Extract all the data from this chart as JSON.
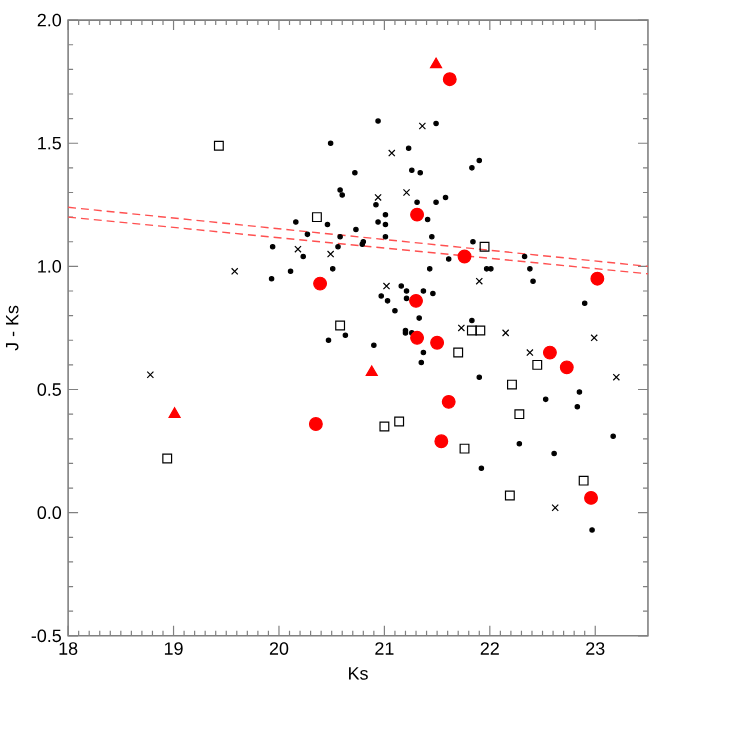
{
  "chart_data": {
    "type": "scatter",
    "xlabel": "Ks",
    "ylabel": "J - Ks",
    "xlim": [
      18,
      23.5
    ],
    "ylim": [
      -0.5,
      2.0
    ],
    "xticks": [
      18,
      19,
      20,
      21,
      22,
      23
    ],
    "yticks": [
      -0.5,
      {
        "value": 0,
        "label": "0.0"
      },
      0.5,
      {
        "value": 1,
        "label": "1.0"
      },
      1.5,
      {
        "value": 2,
        "label": "2.0"
      }
    ],
    "grid": false,
    "series": [
      {
        "marker": "circle",
        "color": "#000000",
        "x": [
          20.49,
          20.72,
          20.58,
          20.6,
          20.46,
          20.16,
          20.27,
          20.73,
          20.58,
          20.79,
          19.94,
          20.23,
          20.56,
          20.51,
          20.11,
          19.93,
          20.47,
          20.63,
          20.94,
          21.49,
          21.23,
          21.26,
          21.34,
          21.83,
          21.9,
          21.31,
          21.49,
          21.58,
          20.92,
          21.01,
          21.01,
          20.94,
          21.41,
          21.01,
          21.45,
          20.8,
          21.61,
          21.84,
          21.43,
          21.97,
          22.01,
          22.33,
          22.38,
          22.41,
          21.16,
          20.97,
          21.03,
          21.21,
          21.21,
          21.37,
          21.46,
          21.1,
          21.33,
          22.9,
          21.2,
          20.9,
          21.2,
          21.26,
          21.37,
          21.35,
          21.9,
          22.53,
          22.85,
          22.83,
          23.17,
          22.28,
          22.61,
          21.92,
          22.97,
          21.83
        ],
        "values": [
          1.5,
          1.38,
          1.31,
          1.29,
          1.17,
          1.18,
          1.13,
          1.15,
          1.12,
          1.09,
          1.08,
          1.04,
          1.08,
          0.99,
          0.98,
          0.95,
          0.7,
          0.72,
          1.59,
          1.58,
          1.48,
          1.39,
          1.38,
          1.4,
          1.43,
          1.26,
          1.26,
          1.28,
          1.25,
          1.21,
          1.17,
          1.18,
          1.19,
          1.12,
          1.12,
          1.1,
          1.03,
          1.1,
          0.99,
          0.99,
          0.99,
          1.04,
          0.99,
          0.94,
          0.92,
          0.88,
          0.86,
          0.9,
          0.87,
          0.9,
          0.89,
          0.82,
          0.79,
          0.85,
          0.74,
          0.68,
          0.73,
          0.73,
          0.65,
          0.61,
          0.55,
          0.46,
          0.49,
          0.43,
          0.31,
          0.28,
          0.24,
          0.18,
          -0.07,
          0.78
        ]
      },
      {
        "marker": "cross",
        "color": "#000000",
        "x": [
          19.58,
          20.18,
          20.49,
          21.36,
          21.07,
          20.94,
          21.21,
          21.02,
          21.9,
          21.73,
          22.15,
          22.38,
          22.99,
          23.2,
          22.62,
          18.78
        ],
        "values": [
          0.98,
          1.07,
          1.05,
          1.57,
          1.46,
          1.28,
          1.3,
          0.92,
          0.94,
          0.75,
          0.73,
          0.65,
          0.71,
          0.55,
          0.02,
          0.56
        ]
      },
      {
        "marker": "square",
        "color": "#000000",
        "x": [
          19.43,
          20.36,
          20.58,
          21.95,
          21.83,
          21.91,
          21.7,
          22.45,
          22.21,
          22.28,
          21.0,
          21.14,
          21.76,
          22.89,
          22.19,
          18.94
        ],
        "values": [
          1.49,
          1.2,
          0.76,
          1.08,
          0.74,
          0.74,
          0.65,
          0.6,
          0.52,
          0.4,
          0.35,
          0.37,
          0.26,
          0.13,
          0.07,
          0.22
        ]
      },
      {
        "marker": "circle",
        "color": "#ff0000",
        "x": [
          21.62,
          21.31,
          21.76,
          23.02,
          21.3,
          20.39,
          21.31,
          21.5,
          22.57,
          22.73,
          21.61,
          21.54,
          22.96,
          20.35
        ],
        "values": [
          1.76,
          1.21,
          1.04,
          0.95,
          0.86,
          0.93,
          0.71,
          0.69,
          0.65,
          0.59,
          0.45,
          0.29,
          0.06,
          0.36
        ]
      },
      {
        "marker": "triangle",
        "color": "#ff0000",
        "x": [
          21.49,
          20.88,
          19.01
        ],
        "values": [
          1.82,
          0.57,
          0.4
        ]
      },
      {
        "type": "line",
        "marker": "none",
        "line_style": "dashed",
        "color": "#ff5050",
        "x": [
          18,
          23.5
        ],
        "values": [
          1.24,
          1.0
        ]
      },
      {
        "type": "line",
        "marker": "none",
        "line_style": "dashed",
        "color": "#ff5050",
        "x": [
          18,
          23.5
        ],
        "values": [
          1.2,
          0.97
        ]
      }
    ]
  }
}
